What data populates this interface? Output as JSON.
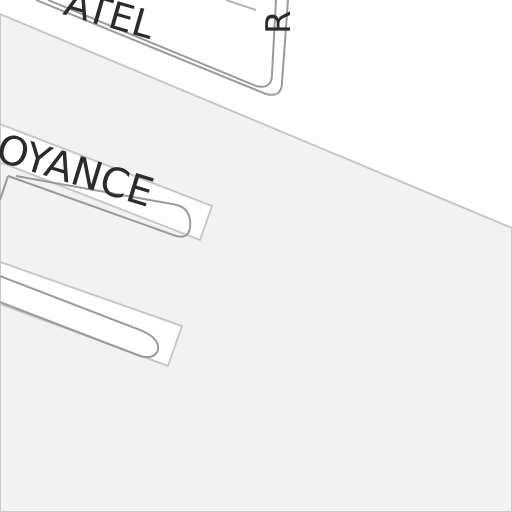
{
  "map": {
    "colors": {
      "background": "#ffffff",
      "block_fill": "#f2f2f2",
      "block_edge": "#c8c8c8",
      "road_fill": "#ffffff",
      "road_casing": "#9a9a9a",
      "label": "#2b2b2b"
    },
    "labels": {
      "street_top": "ATEL",
      "street_top_vertical": "R",
      "street_middle": "OYANCE"
    }
  }
}
